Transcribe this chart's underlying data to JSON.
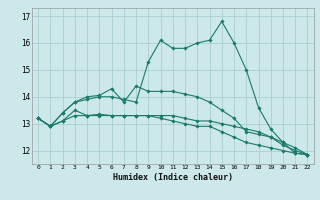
{
  "title": "",
  "xlabel": "Humidex (Indice chaleur)",
  "x_ticks": [
    0,
    1,
    2,
    3,
    4,
    5,
    6,
    7,
    8,
    9,
    10,
    11,
    12,
    13,
    14,
    15,
    16,
    17,
    18,
    19,
    20,
    21,
    22
  ],
  "ylim": [
    11.5,
    17.3
  ],
  "y_ticks": [
    12,
    13,
    14,
    15,
    16,
    17
  ],
  "bg_color": "#cce8e8",
  "grid_color": "#aad0d0",
  "line_color": "#1a7a6a",
  "lines": [
    [
      13.2,
      12.9,
      13.1,
      13.5,
      13.3,
      13.3,
      13.3,
      13.3,
      13.3,
      13.3,
      13.3,
      13.3,
      13.2,
      13.1,
      13.1,
      13.0,
      12.9,
      12.8,
      12.7,
      12.5,
      12.3,
      12.1,
      11.85
    ],
    [
      13.2,
      12.9,
      13.4,
      13.8,
      13.9,
      14.0,
      14.0,
      13.9,
      13.8,
      15.3,
      16.1,
      15.8,
      15.8,
      16.0,
      16.1,
      16.8,
      16.0,
      15.0,
      13.6,
      12.8,
      12.3,
      11.9,
      11.85
    ],
    [
      13.2,
      12.9,
      13.4,
      13.8,
      14.0,
      14.05,
      14.3,
      13.8,
      14.4,
      14.2,
      14.2,
      14.2,
      14.1,
      14.0,
      13.8,
      13.5,
      13.2,
      12.7,
      12.6,
      12.5,
      12.2,
      12.0,
      11.85
    ],
    [
      13.2,
      12.9,
      13.1,
      13.3,
      13.3,
      13.35,
      13.3,
      13.3,
      13.3,
      13.3,
      13.2,
      13.1,
      13.0,
      12.9,
      12.9,
      12.7,
      12.5,
      12.3,
      12.2,
      12.1,
      12.0,
      11.9,
      11.85
    ]
  ]
}
